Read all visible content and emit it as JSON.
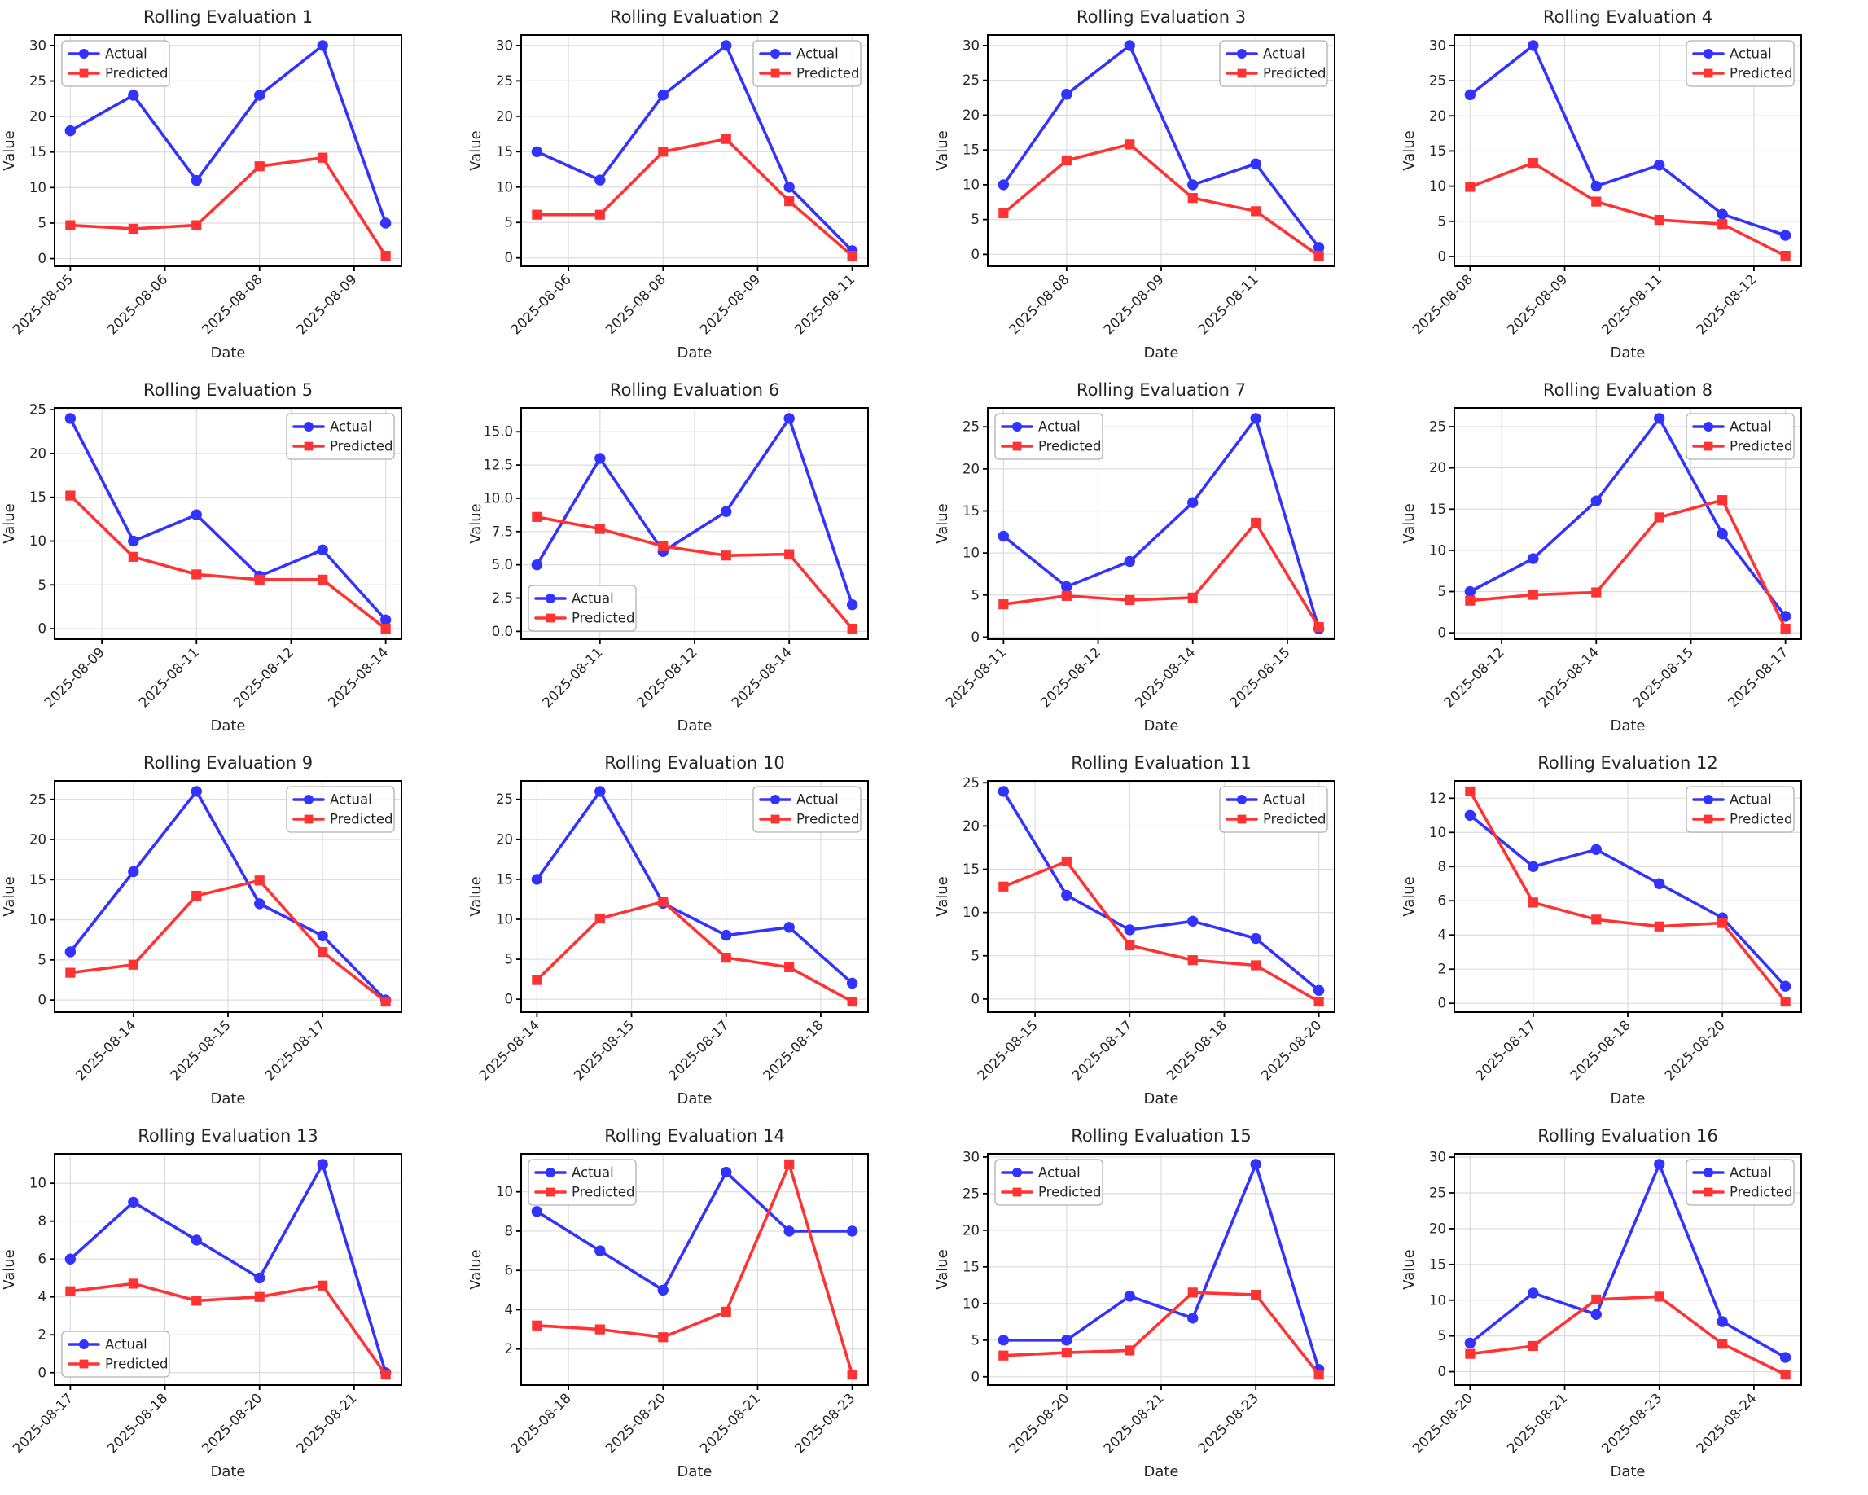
{
  "figure": {
    "background": "#ffffff",
    "grid_rows": 4,
    "grid_cols": 4,
    "actual_color": "#3333ff",
    "predicted_color": "#ff3333",
    "grid_line_color": "#dcdcdc",
    "spine_color": "#000000",
    "text_color": "#262626"
  },
  "chart_data": [
    {
      "type": "line",
      "title": "Rolling Evaluation 1",
      "xlabel": "Date",
      "ylabel": "Value",
      "legend_position": "upper-left",
      "legend_entries": [
        "Actual",
        "Predicted"
      ],
      "y_ticks": [
        "0",
        "5",
        "10",
        "15",
        "20",
        "25",
        "30"
      ],
      "x_tick_positions": [
        0,
        1.5,
        3,
        4.5
      ],
      "x_tick_labels": [
        "2025-08-05",
        "2025-08-06",
        "2025-08-08",
        "2025-08-09"
      ],
      "series": [
        {
          "name": "Actual",
          "color": "#3333ff",
          "marker": "circle",
          "values": [
            18,
            23,
            11,
            23,
            30,
            5
          ]
        },
        {
          "name": "Predicted",
          "color": "#ff3333",
          "marker": "square",
          "values": [
            4.7,
            4.2,
            4.7,
            13,
            14.2,
            0.4
          ]
        }
      ]
    },
    {
      "type": "line",
      "title": "Rolling Evaluation 2",
      "xlabel": "Date",
      "ylabel": "Value",
      "legend_position": "upper-right",
      "legend_entries": [
        "Actual",
        "Predicted"
      ],
      "y_ticks": [
        "0",
        "5",
        "10",
        "15",
        "20",
        "25",
        "30"
      ],
      "x_tick_positions": [
        0.5,
        2,
        3.5,
        5
      ],
      "x_tick_labels": [
        "2025-08-06",
        "2025-08-08",
        "2025-08-09",
        "2025-08-11"
      ],
      "series": [
        {
          "name": "Actual",
          "color": "#3333ff",
          "marker": "circle",
          "values": [
            15,
            11,
            23,
            30,
            10,
            1
          ]
        },
        {
          "name": "Predicted",
          "color": "#ff3333",
          "marker": "square",
          "values": [
            6.1,
            6.1,
            15,
            16.8,
            8,
            0.3
          ]
        }
      ]
    },
    {
      "type": "line",
      "title": "Rolling Evaluation 3",
      "xlabel": "Date",
      "ylabel": "Value",
      "legend_position": "upper-right",
      "legend_entries": [
        "Actual",
        "Predicted"
      ],
      "y_ticks": [
        "0",
        "5",
        "10",
        "15",
        "20",
        "25",
        "30"
      ],
      "x_tick_positions": [
        1,
        2.5,
        4
      ],
      "x_tick_labels": [
        "2025-08-08",
        "2025-08-09",
        "2025-08-11"
      ],
      "series": [
        {
          "name": "Actual",
          "color": "#3333ff",
          "marker": "circle",
          "values": [
            10,
            23,
            30,
            10,
            13,
            1
          ]
        },
        {
          "name": "Predicted",
          "color": "#ff3333",
          "marker": "square",
          "values": [
            5.9,
            13.5,
            15.8,
            8.1,
            6.2,
            -0.2
          ]
        }
      ]
    },
    {
      "type": "line",
      "title": "Rolling Evaluation 4",
      "xlabel": "Date",
      "ylabel": "Value",
      "legend_position": "upper-right",
      "legend_entries": [
        "Actual",
        "Predicted"
      ],
      "y_ticks": [
        "0",
        "5",
        "10",
        "15",
        "20",
        "25",
        "30"
      ],
      "x_tick_positions": [
        0,
        1.5,
        3,
        4.5
      ],
      "x_tick_labels": [
        "2025-08-08",
        "2025-08-09",
        "2025-08-11",
        "2025-08-12"
      ],
      "series": [
        {
          "name": "Actual",
          "color": "#3333ff",
          "marker": "circle",
          "values": [
            23,
            30,
            10,
            13,
            6,
            3
          ]
        },
        {
          "name": "Predicted",
          "color": "#ff3333",
          "marker": "square",
          "values": [
            9.9,
            13.3,
            7.8,
            5.2,
            4.6,
            0.1
          ]
        }
      ]
    },
    {
      "type": "line",
      "title": "Rolling Evaluation 5",
      "xlabel": "Date",
      "ylabel": "Value",
      "legend_position": "upper-right",
      "legend_entries": [
        "Actual",
        "Predicted"
      ],
      "y_ticks": [
        "0",
        "5",
        "10",
        "15",
        "20",
        "25"
      ],
      "x_tick_positions": [
        0.5,
        2,
        3.5,
        5
      ],
      "x_tick_labels": [
        "2025-08-09",
        "2025-08-11",
        "2025-08-12",
        "2025-08-14"
      ],
      "series": [
        {
          "name": "Actual",
          "color": "#3333ff",
          "marker": "circle",
          "values": [
            24,
            10,
            13,
            6,
            9,
            1
          ]
        },
        {
          "name": "Predicted",
          "color": "#ff3333",
          "marker": "square",
          "values": [
            15.2,
            8.2,
            6.2,
            5.6,
            5.6,
            0
          ]
        }
      ]
    },
    {
      "type": "line",
      "title": "Rolling Evaluation 6",
      "xlabel": "Date",
      "ylabel": "Value",
      "legend_position": "lower-left",
      "legend_entries": [
        "Actual",
        "Predicted"
      ],
      "y_ticks": [
        "0.0",
        "2.5",
        "5.0",
        "7.5",
        "10.0",
        "12.5",
        "15.0"
      ],
      "x_tick_positions": [
        1,
        2.5,
        4
      ],
      "x_tick_labels": [
        "2025-08-11",
        "2025-08-12",
        "2025-08-14"
      ],
      "series": [
        {
          "name": "Actual",
          "color": "#3333ff",
          "marker": "circle",
          "values": [
            5,
            13,
            6,
            9,
            16,
            2
          ]
        },
        {
          "name": "Predicted",
          "color": "#ff3333",
          "marker": "square",
          "values": [
            8.6,
            7.7,
            6.4,
            5.7,
            5.8,
            0.2
          ]
        }
      ]
    },
    {
      "type": "line",
      "title": "Rolling Evaluation 7",
      "xlabel": "Date",
      "ylabel": "Value",
      "legend_position": "upper-left",
      "legend_entries": [
        "Actual",
        "Predicted"
      ],
      "y_ticks": [
        "0",
        "5",
        "10",
        "15",
        "20",
        "25"
      ],
      "x_tick_positions": [
        0,
        1.5,
        3,
        4.5
      ],
      "x_tick_labels": [
        "2025-08-11",
        "2025-08-12",
        "2025-08-14",
        "2025-08-15"
      ],
      "series": [
        {
          "name": "Actual",
          "color": "#3333ff",
          "marker": "circle",
          "values": [
            12,
            6,
            9,
            16,
            26,
            1
          ]
        },
        {
          "name": "Predicted",
          "color": "#ff3333",
          "marker": "square",
          "values": [
            3.9,
            4.9,
            4.4,
            4.7,
            13.6,
            1.2
          ]
        }
      ]
    },
    {
      "type": "line",
      "title": "Rolling Evaluation 8",
      "xlabel": "Date",
      "ylabel": "Value",
      "legend_position": "upper-right",
      "legend_entries": [
        "Actual",
        "Predicted"
      ],
      "y_ticks": [
        "0",
        "5",
        "10",
        "15",
        "20",
        "25"
      ],
      "x_tick_positions": [
        0.5,
        2,
        3.5,
        5
      ],
      "x_tick_labels": [
        "2025-08-12",
        "2025-08-14",
        "2025-08-15",
        "2025-08-17"
      ],
      "series": [
        {
          "name": "Actual",
          "color": "#3333ff",
          "marker": "circle",
          "values": [
            5,
            9,
            16,
            26,
            12,
            2
          ]
        },
        {
          "name": "Predicted",
          "color": "#ff3333",
          "marker": "square",
          "values": [
            3.9,
            4.6,
            4.9,
            14,
            16.1,
            0.5
          ]
        }
      ]
    },
    {
      "type": "line",
      "title": "Rolling Evaluation 9",
      "xlabel": "Date",
      "ylabel": "Value",
      "legend_position": "upper-right",
      "legend_entries": [
        "Actual",
        "Predicted"
      ],
      "y_ticks": [
        "0",
        "5",
        "10",
        "15",
        "20",
        "25"
      ],
      "x_tick_positions": [
        1,
        2.5,
        4
      ],
      "x_tick_labels": [
        "2025-08-14",
        "2025-08-15",
        "2025-08-17"
      ],
      "series": [
        {
          "name": "Actual",
          "color": "#3333ff",
          "marker": "circle",
          "values": [
            6,
            16,
            26,
            12,
            8,
            0
          ]
        },
        {
          "name": "Predicted",
          "color": "#ff3333",
          "marker": "square",
          "values": [
            3.4,
            4.4,
            13,
            14.9,
            6,
            -0.2
          ]
        }
      ]
    },
    {
      "type": "line",
      "title": "Rolling Evaluation 10",
      "xlabel": "Date",
      "ylabel": "Value",
      "legend_position": "upper-right",
      "legend_entries": [
        "Actual",
        "Predicted"
      ],
      "y_ticks": [
        "0",
        "5",
        "10",
        "15",
        "20",
        "25"
      ],
      "x_tick_positions": [
        0,
        1.5,
        3,
        4.5
      ],
      "x_tick_labels": [
        "2025-08-14",
        "2025-08-15",
        "2025-08-17",
        "2025-08-18"
      ],
      "series": [
        {
          "name": "Actual",
          "color": "#3333ff",
          "marker": "circle",
          "values": [
            15,
            26,
            12,
            8,
            9,
            2
          ]
        },
        {
          "name": "Predicted",
          "color": "#ff3333",
          "marker": "square",
          "values": [
            2.4,
            10.1,
            12.2,
            5.2,
            4,
            -0.3
          ]
        }
      ]
    },
    {
      "type": "line",
      "title": "Rolling Evaluation 11",
      "xlabel": "Date",
      "ylabel": "Value",
      "legend_position": "upper-right",
      "legend_entries": [
        "Actual",
        "Predicted"
      ],
      "y_ticks": [
        "0",
        "5",
        "10",
        "15",
        "20",
        "25"
      ],
      "x_tick_positions": [
        0.5,
        2,
        3.5,
        5
      ],
      "x_tick_labels": [
        "2025-08-15",
        "2025-08-17",
        "2025-08-18",
        "2025-08-20"
      ],
      "series": [
        {
          "name": "Actual",
          "color": "#3333ff",
          "marker": "circle",
          "values": [
            24,
            12,
            8,
            9,
            7,
            1
          ]
        },
        {
          "name": "Predicted",
          "color": "#ff3333",
          "marker": "square",
          "values": [
            13,
            15.9,
            6.2,
            4.5,
            3.9,
            -0.3
          ]
        }
      ]
    },
    {
      "type": "line",
      "title": "Rolling Evaluation 12",
      "xlabel": "Date",
      "ylabel": "Value",
      "legend_position": "upper-right",
      "legend_entries": [
        "Actual",
        "Predicted"
      ],
      "y_ticks": [
        "0",
        "2",
        "4",
        "6",
        "8",
        "10",
        "12"
      ],
      "x_tick_positions": [
        1,
        2.5,
        4
      ],
      "x_tick_labels": [
        "2025-08-17",
        "2025-08-18",
        "2025-08-20"
      ],
      "series": [
        {
          "name": "Actual",
          "color": "#3333ff",
          "marker": "circle",
          "values": [
            11,
            8,
            9,
            7,
            5,
            1
          ]
        },
        {
          "name": "Predicted",
          "color": "#ff3333",
          "marker": "square",
          "values": [
            12.4,
            5.9,
            4.9,
            4.5,
            4.7,
            0.1
          ]
        }
      ]
    },
    {
      "type": "line",
      "title": "Rolling Evaluation 13",
      "xlabel": "Date",
      "ylabel": "Value",
      "legend_position": "lower-left",
      "legend_entries": [
        "Actual",
        "Predicted"
      ],
      "y_ticks": [
        "0",
        "2",
        "4",
        "6",
        "8",
        "10"
      ],
      "x_tick_positions": [
        0,
        1.5,
        3,
        4.5
      ],
      "x_tick_labels": [
        "2025-08-17",
        "2025-08-18",
        "2025-08-20",
        "2025-08-21"
      ],
      "series": [
        {
          "name": "Actual",
          "color": "#3333ff",
          "marker": "circle",
          "values": [
            6,
            9,
            7,
            5,
            11,
            0
          ]
        },
        {
          "name": "Predicted",
          "color": "#ff3333",
          "marker": "square",
          "values": [
            4.3,
            4.7,
            3.8,
            4,
            4.6,
            -0.1
          ]
        }
      ]
    },
    {
      "type": "line",
      "title": "Rolling Evaluation 14",
      "xlabel": "Date",
      "ylabel": "Value",
      "legend_position": "upper-left",
      "legend_entries": [
        "Actual",
        "Predicted"
      ],
      "y_ticks": [
        "2",
        "4",
        "6",
        "8",
        "10"
      ],
      "x_tick_positions": [
        0.5,
        2,
        3.5,
        5
      ],
      "x_tick_labels": [
        "2025-08-18",
        "2025-08-20",
        "2025-08-21",
        "2025-08-23"
      ],
      "series": [
        {
          "name": "Actual",
          "color": "#3333ff",
          "marker": "circle",
          "values": [
            9,
            7,
            5,
            11,
            8,
            8
          ]
        },
        {
          "name": "Predicted",
          "color": "#ff3333",
          "marker": "square",
          "values": [
            3.2,
            3,
            2.6,
            3.9,
            11.4,
            0.7
          ]
        }
      ]
    },
    {
      "type": "line",
      "title": "Rolling Evaluation 15",
      "xlabel": "Date",
      "ylabel": "Value",
      "legend_position": "upper-left",
      "legend_entries": [
        "Actual",
        "Predicted"
      ],
      "y_ticks": [
        "0",
        "5",
        "10",
        "15",
        "20",
        "25",
        "30"
      ],
      "x_tick_positions": [
        1,
        2.5,
        4
      ],
      "x_tick_labels": [
        "2025-08-20",
        "2025-08-21",
        "2025-08-23"
      ],
      "series": [
        {
          "name": "Actual",
          "color": "#3333ff",
          "marker": "circle",
          "values": [
            5,
            5,
            11,
            8,
            29,
            1
          ]
        },
        {
          "name": "Predicted",
          "color": "#ff3333",
          "marker": "square",
          "values": [
            2.9,
            3.3,
            3.6,
            11.5,
            11.2,
            0.3
          ]
        }
      ]
    },
    {
      "type": "line",
      "title": "Rolling Evaluation 16",
      "xlabel": "Date",
      "ylabel": "Value",
      "legend_position": "upper-right",
      "legend_entries": [
        "Actual",
        "Predicted"
      ],
      "y_ticks": [
        "0",
        "5",
        "10",
        "15",
        "20",
        "25",
        "30"
      ],
      "x_tick_positions": [
        0,
        1.5,
        3,
        4.5
      ],
      "x_tick_labels": [
        "2025-08-20",
        "2025-08-21",
        "2025-08-23",
        "2025-08-24"
      ],
      "series": [
        {
          "name": "Actual",
          "color": "#3333ff",
          "marker": "circle",
          "values": [
            4,
            11,
            8,
            29,
            7,
            2
          ]
        },
        {
          "name": "Predicted",
          "color": "#ff3333",
          "marker": "square",
          "values": [
            2.5,
            3.6,
            10.1,
            10.5,
            3.9,
            -0.4
          ]
        }
      ]
    }
  ]
}
